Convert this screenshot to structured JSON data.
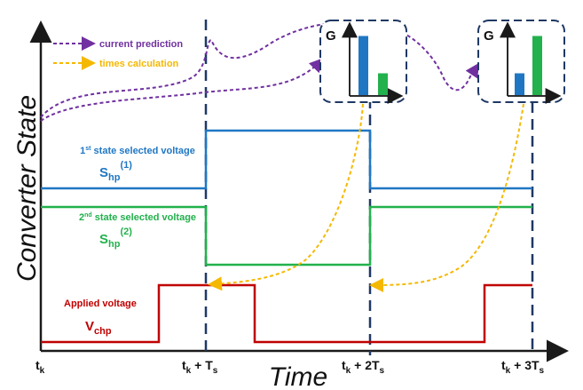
{
  "axes": {
    "y_label": "Converter State",
    "x_label": "Time"
  },
  "time_ticks": [
    {
      "main": "t",
      "sub": "k",
      "suffix_main": "",
      "suffix_sub": ""
    },
    {
      "main": "t",
      "sub": "k",
      "suffix_main": " + T",
      "suffix_sub": "s"
    },
    {
      "main": "t",
      "sub": "k",
      "suffix_main": " + 2T",
      "suffix_sub": "s"
    },
    {
      "main": "t",
      "sub": "k",
      "suffix_main": " + 3T",
      "suffix_sub": "s"
    }
  ],
  "legend": {
    "prediction": "current prediction",
    "times": "times calculation"
  },
  "signals": {
    "first": {
      "caption_pre": "1",
      "caption_sup": "st",
      "caption_post": " state selected voltage",
      "sym": "S",
      "sub": "hp",
      "sup": "(1)"
    },
    "second": {
      "caption_pre": "2",
      "caption_sup": "nd",
      "caption_post": " state selected voltage",
      "sym": "S",
      "sub": "hp",
      "sup": "(2)"
    },
    "applied": {
      "caption": "Applied voltage",
      "sym": "V",
      "sub": "chp"
    }
  },
  "cost_boxes": [
    {
      "label": "G",
      "bars": [
        {
          "color": "blue",
          "level": 0.95
        },
        {
          "color": "green",
          "level": 0.35
        }
      ]
    },
    {
      "label": "G",
      "bars": [
        {
          "color": "blue",
          "level": 0.35
        },
        {
          "color": "green",
          "level": 0.95
        }
      ]
    }
  ],
  "colors": {
    "blue": "#1f77c4",
    "green": "#22b14c",
    "red": "#c00000",
    "purple": "#7030a0",
    "orange": "#f5b800",
    "navy": "#1f3864",
    "axis": "#1a1a1a"
  }
}
